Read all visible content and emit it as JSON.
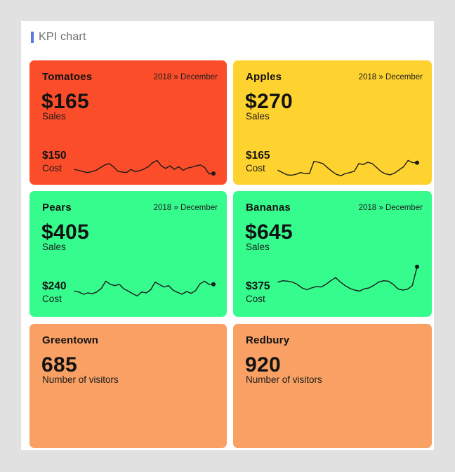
{
  "header": {
    "title": "KPI chart",
    "accent_color": "#5A78E4"
  },
  "colors": {
    "page_background": "#E1E1E1",
    "panel_background": "#FFFFFF",
    "sparkline": "#1A1A1A"
  },
  "cards": [
    {
      "title": "Tomatoes",
      "period": "2018 » December",
      "sales_value": "$165",
      "sales_label": "Sales",
      "cost_value": "$150",
      "cost_label": "Cost",
      "color": "#FB4D2A"
    },
    {
      "title": "Apples",
      "period": "2018 » December",
      "sales_value": "$270",
      "sales_label": "Sales",
      "cost_value": "$165",
      "cost_label": "Cost",
      "color": "#FFD32F"
    },
    {
      "title": "Pears",
      "period": "2018 » December",
      "sales_value": "$405",
      "sales_label": "Sales",
      "cost_value": "$240",
      "cost_label": "Cost",
      "color": "#36FC8E"
    },
    {
      "title": "Bananas",
      "period": "2018 » December",
      "sales_value": "$645",
      "sales_label": "Sales",
      "cost_value": "$375",
      "cost_label": "Cost",
      "color": "#36FC8E"
    }
  ],
  "visitor_cards": [
    {
      "title": "Greentown",
      "value": "685",
      "label": "Number of visitors",
      "color": "#F9A164"
    },
    {
      "title": "Redbury",
      "value": "920",
      "label": "Number of visitors",
      "color": "#F9A164"
    }
  ],
  "chart_data": [
    {
      "type": "line",
      "title": "Tomatoes",
      "period": "2018 » December",
      "kpi": {
        "sales_usd": 165,
        "cost_usd": 150
      },
      "axes": "hidden",
      "legend": false,
      "values_scale": "relative 0-100 (sparkline, unlabeled)",
      "series": [
        {
          "name": "Cost",
          "values": [
            20,
            18,
            15,
            13,
            15,
            18,
            24,
            30,
            33,
            26,
            16,
            14,
            13,
            20,
            15,
            17,
            21,
            26,
            35,
            40,
            28,
            22,
            28,
            20,
            26,
            18,
            23,
            25,
            28,
            30,
            24,
            10,
            11
          ]
        }
      ]
    },
    {
      "type": "line",
      "title": "Apples",
      "period": "2018 » December",
      "kpi": {
        "sales_usd": 270,
        "cost_usd": 165
      },
      "axes": "hidden",
      "legend": false,
      "values_scale": "relative 0-100 (sparkline, unlabeled)",
      "series": [
        {
          "name": "Cost",
          "values": [
            18,
            13,
            8,
            7,
            9,
            13,
            11,
            11,
            38,
            36,
            33,
            24,
            16,
            9,
            6,
            11,
            13,
            16,
            33,
            31,
            36,
            33,
            24,
            15,
            10,
            8,
            12,
            19,
            26,
            40,
            35,
            35
          ]
        }
      ]
    },
    {
      "type": "line",
      "title": "Pears",
      "period": "2018 » December",
      "kpi": {
        "sales_usd": 405,
        "cost_usd": 240
      },
      "axes": "hidden",
      "legend": false,
      "values_scale": "relative 0-100 (sparkline, unlabeled)",
      "series": [
        {
          "name": "Cost",
          "values": [
            40,
            38,
            33,
            36,
            34,
            38,
            46,
            62,
            55,
            52,
            55,
            45,
            40,
            34,
            29,
            38,
            36,
            43,
            60,
            54,
            49,
            52,
            42,
            37,
            33,
            39,
            35,
            41,
            56,
            62,
            55,
            55
          ]
        }
      ]
    },
    {
      "type": "line",
      "title": "Bananas",
      "period": "2018 » December",
      "kpi": {
        "sales_usd": 645,
        "cost_usd": 375
      },
      "axes": "hidden",
      "legend": false,
      "values_scale": "relative 0-100 (sparkline, unlabeled)",
      "series": [
        {
          "name": "Cost",
          "values": [
            60,
            63,
            62,
            60,
            55,
            47,
            43,
            47,
            50,
            49,
            55,
            63,
            70,
            60,
            52,
            46,
            42,
            40,
            45,
            47,
            53,
            60,
            63,
            62,
            55,
            45,
            42,
            44,
            52,
            94
          ]
        }
      ]
    },
    {
      "type": "kpi",
      "title": "Greentown",
      "value": 685,
      "label": "Number of visitors"
    },
    {
      "type": "kpi",
      "title": "Redbury",
      "value": 920,
      "label": "Number of visitors"
    }
  ]
}
